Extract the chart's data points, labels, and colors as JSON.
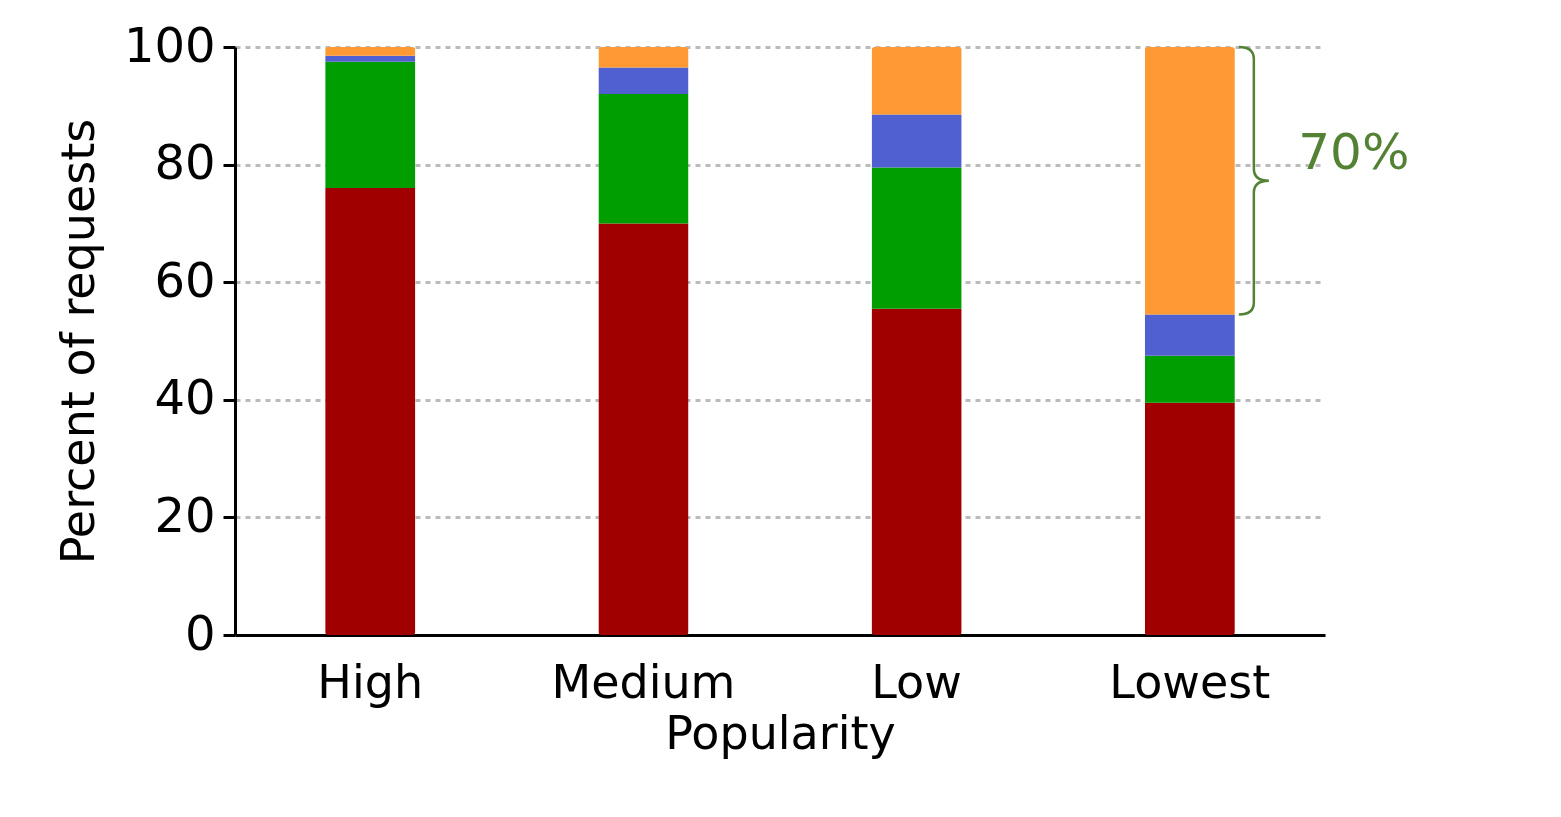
{
  "chart_data": {
    "type": "bar",
    "stacked": true,
    "xlabel": "Popularity",
    "ylabel": "Percent of requests",
    "categories": [
      "High",
      "Medium",
      "Low",
      "Lowest"
    ],
    "series": [
      {
        "color": "#a00000",
        "values": [
          76,
          70,
          55.5,
          39.5
        ]
      },
      {
        "color": "#009e00",
        "values": [
          21.5,
          22,
          24,
          8
        ]
      },
      {
        "color": "#5060d0",
        "values": [
          1,
          4.5,
          9,
          7
        ]
      },
      {
        "color": "#ff9933",
        "values": [
          1.5,
          3.5,
          11.5,
          45.5
        ]
      }
    ],
    "ylim": [
      0,
      100
    ],
    "yticks": [
      0,
      20,
      40,
      60,
      80,
      100
    ],
    "grid": "y",
    "legend": false,
    "annotations": [
      "70%"
    ]
  }
}
